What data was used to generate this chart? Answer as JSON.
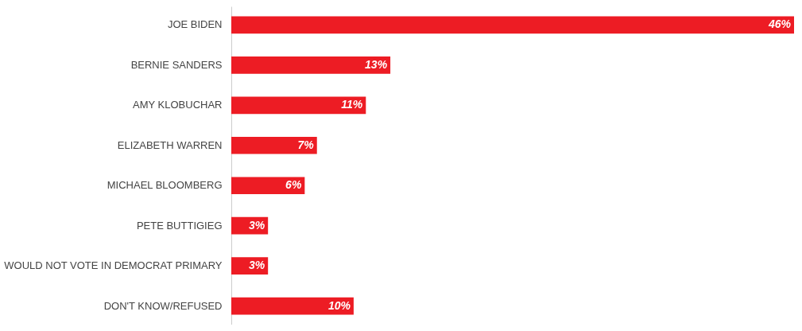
{
  "chart_data": {
    "type": "bar",
    "orientation": "horizontal",
    "categories": [
      "JOE BIDEN",
      "BERNIE SANDERS",
      "AMY KLOBUCHAR",
      "ELIZABETH WARREN",
      "MICHAEL BLOOMBERG",
      "PETE BUTTIGIEG",
      "WOULD NOT VOTE IN DEMOCRAT PRIMARY",
      "DON'T KNOW/REFUSED"
    ],
    "values": [
      46,
      13,
      11,
      7,
      6,
      3,
      3,
      10
    ],
    "value_labels": [
      "46%",
      "13%",
      "11%",
      "7%",
      "6%",
      "3%",
      "3%",
      "10%"
    ],
    "color": "#ed1c24"
  }
}
